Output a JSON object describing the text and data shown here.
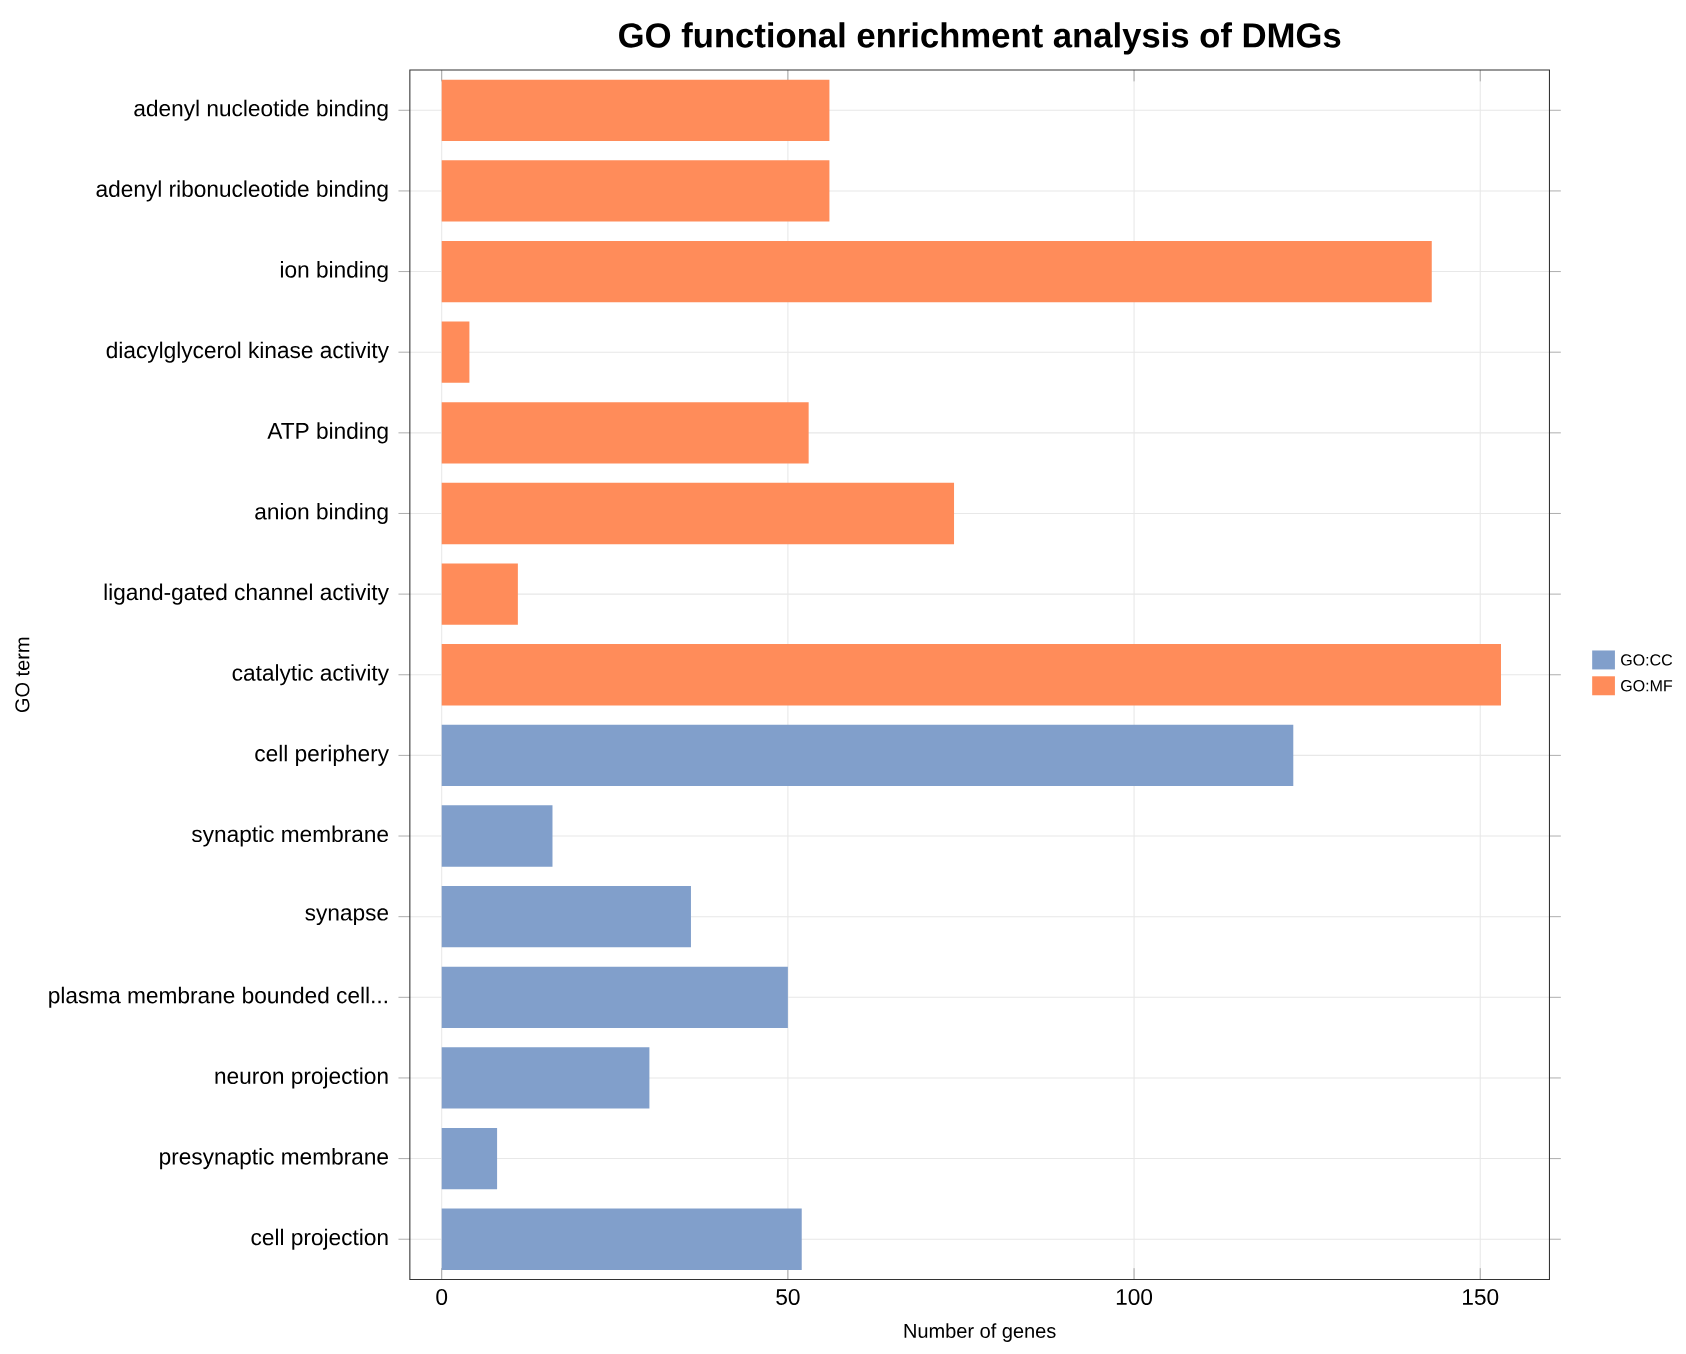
{
  "chart_data": {
    "type": "bar",
    "orientation": "horizontal",
    "title": "GO functional enrichment analysis of DMGs",
    "xlabel": "Number of genes",
    "ylabel": "GO term",
    "categories": [
      "adenyl nucleotide binding",
      "adenyl ribonucleotide binding",
      "ion binding",
      "diacylglycerol kinase activity",
      "ATP binding",
      "anion binding",
      "ligand-gated channel activity",
      "catalytic activity",
      "cell periphery",
      "synaptic membrane",
      "synapse",
      "plasma membrane bounded cell...",
      "neuron projection",
      "presynaptic membrane",
      "cell projection"
    ],
    "series": [
      {
        "name": "GO:CC",
        "color": "#819fcb",
        "values": [
          null,
          null,
          null,
          null,
          null,
          null,
          null,
          null,
          123,
          16,
          36,
          50,
          30,
          8,
          52
        ]
      },
      {
        "name": "GO:MF",
        "color": "#ff8c5a",
        "values": [
          56,
          56,
          143,
          4,
          53,
          74,
          11,
          153,
          null,
          null,
          null,
          null,
          null,
          null,
          null
        ]
      }
    ],
    "xlim": [
      -4.6,
      160
    ],
    "xticks": [
      0,
      50,
      100,
      150
    ],
    "grid": true,
    "legend": "right"
  }
}
